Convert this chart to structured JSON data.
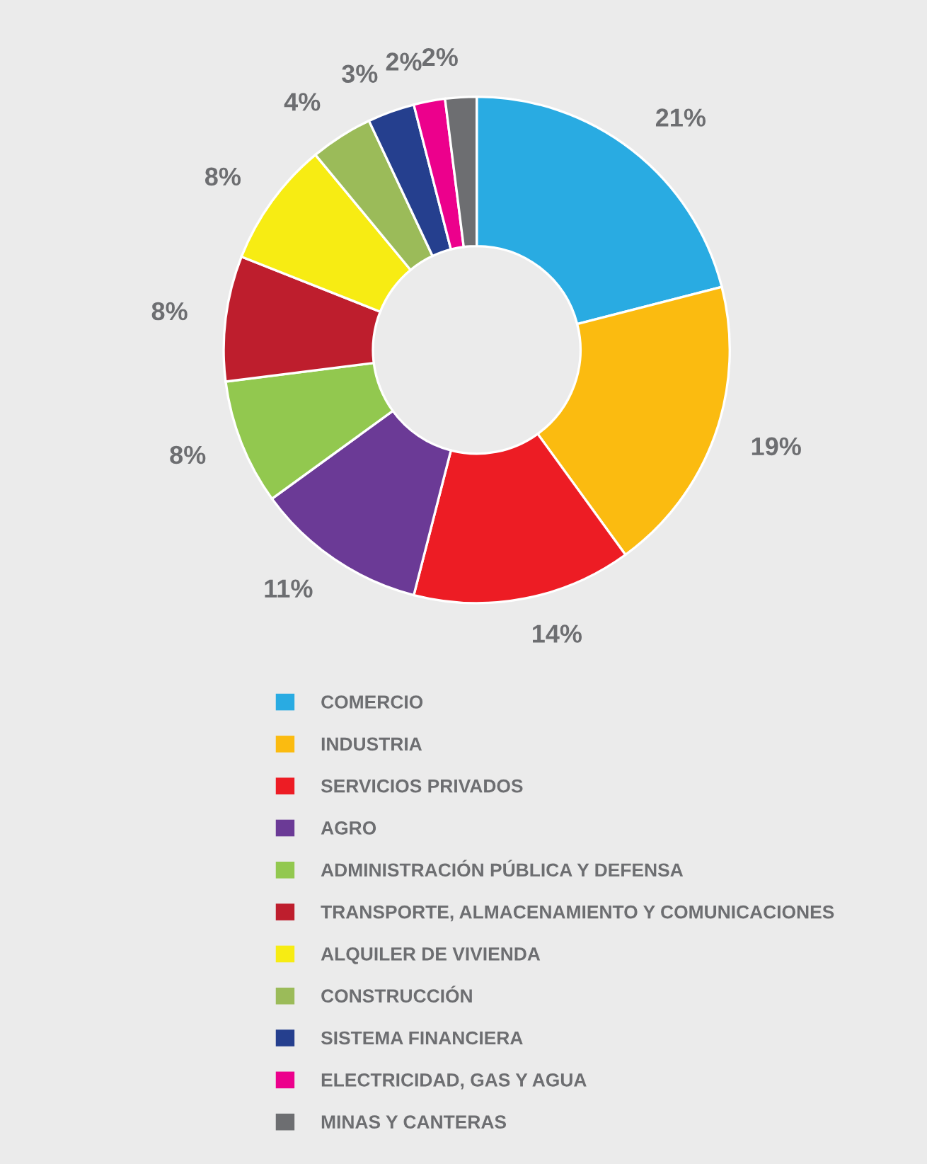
{
  "chart_data": {
    "type": "donut",
    "categories": [
      "COMERCIO",
      "INDUSTRIA",
      "SERVICIOS PRIVADOS",
      "AGRO",
      "ADMINISTRACIÓN PÚBLICA Y DEFENSA",
      "TRANSPORTE, ALMACENAMIENTO Y COMUNICACIONES",
      "ALQUILER DE VIVIENDA",
      "CONSTRUCCIÓN",
      "SISTEMA FINANCIERA",
      "ELECTRICIDAD, GAS Y AGUA",
      "MINAS Y CANTERAS"
    ],
    "values": [
      21,
      19,
      14,
      11,
      8,
      8,
      8,
      4,
      3,
      2,
      2
    ],
    "value_labels": [
      "21%",
      "19%",
      "14%",
      "11%",
      "8%",
      "8%",
      "8%",
      "4%",
      "3%",
      "2%",
      "2%"
    ],
    "colors": [
      "#29abe2",
      "#fbbb10",
      "#ed1c24",
      "#6b3a96",
      "#92c84f",
      "#be1e2d",
      "#f7ec13",
      "#9bbb59",
      "#253f8e",
      "#ec008c",
      "#6d6e71"
    ],
    "legend": "bottom"
  }
}
